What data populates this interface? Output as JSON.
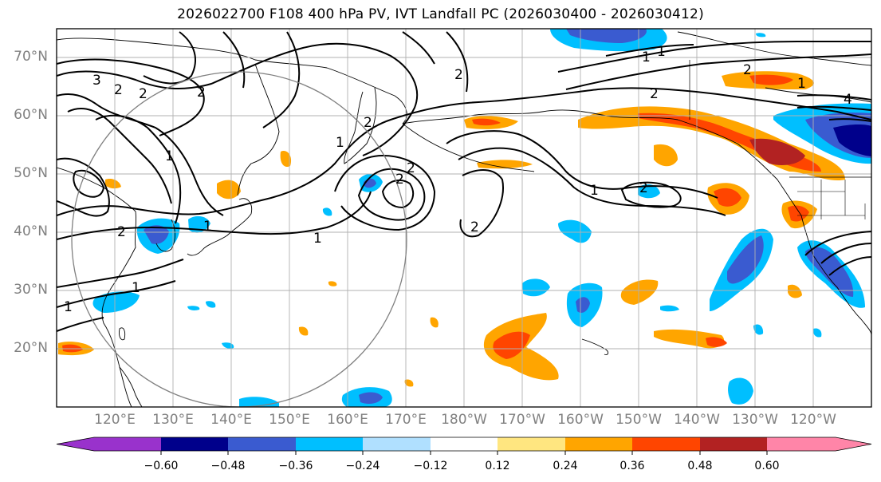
{
  "title": "2026022700 F108 400 hPa PV, IVT Landfall PC (2026030400 - 2026030412)",
  "lat_labels": [
    "70°N",
    "60°N",
    "50°N",
    "40°N",
    "30°N",
    "20°N"
  ],
  "lon_labels": [
    "120°E",
    "130°E",
    "140°E",
    "150°E",
    "160°E",
    "170°E",
    "180°W",
    "170°W",
    "160°W",
    "150°W",
    "140°W",
    "130°W",
    "120°W"
  ],
  "contour_labels": [
    "3",
    "2",
    "2",
    "2",
    "1",
    "2",
    "1",
    "2",
    "2",
    "1",
    "1",
    "2",
    "1",
    "2",
    "1",
    "2",
    "2",
    "1",
    "2",
    "4",
    "1",
    "1",
    "1"
  ],
  "colorbar": {
    "tick_labels": [
      "−0.60",
      "−0.48",
      "−0.36",
      "−0.24",
      "−0.12",
      "0.12",
      "0.24",
      "0.36",
      "0.48",
      "0.60"
    ],
    "colors": [
      "#9932cc",
      "#00008b",
      "#3a5bd0",
      "#00bfff",
      "#b0e0ff",
      "#ffffff",
      "#ffe680",
      "#ffa500",
      "#ff4500",
      "#b22222",
      "#ff85a8"
    ]
  },
  "colors": {
    "frame": "#000000",
    "grid": "#b0b0b0",
    "coast": "#000000",
    "contour": "#000000",
    "circle": "#808080"
  }
}
